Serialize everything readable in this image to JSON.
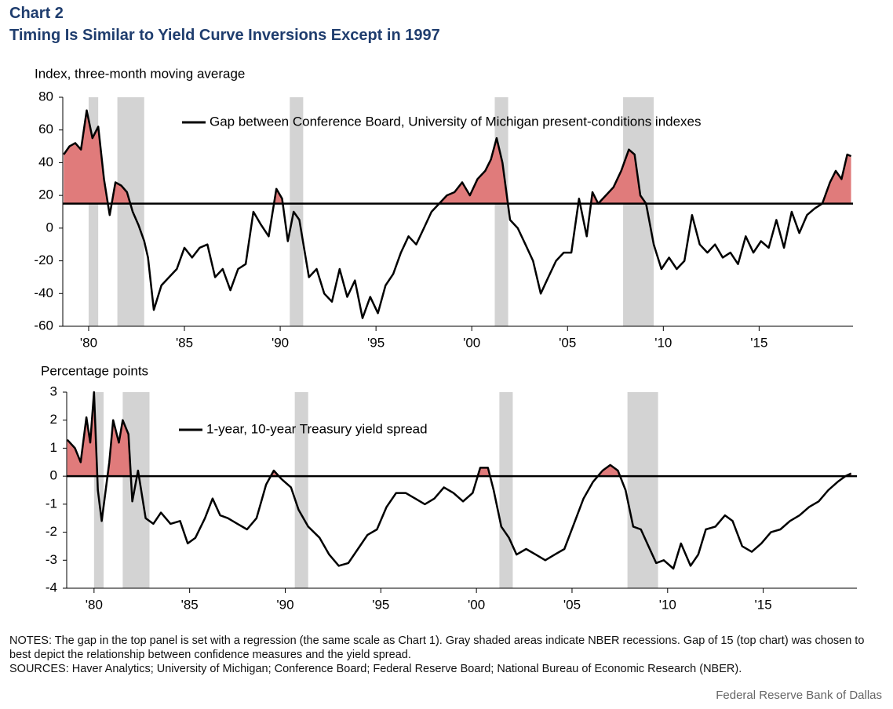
{
  "title": "Chart 2",
  "subtitle": "Timing Is Similar to Yield Curve Inversions Except in 1997",
  "notes": "NOTES: The gap in the top panel is set with a regression (the same scale as Chart 1). Gray shaded areas indicate NBER recessions. Gap of 15 (top chart) was chosen to best depict the relationship between confidence measures and the yield spread.",
  "sources": "SOURCES: Haver Analytics; University of Michigan; Conference Board; Federal Reserve Board; National Bureau of Economic Research (NBER).",
  "credit": "Federal Reserve Bank of Dallas",
  "chart_data": [
    {
      "type": "line",
      "y_label": "Index, three-month moving average",
      "xlim": [
        1978.65,
        2019.9
      ],
      "ylim": [
        -60,
        80
      ],
      "yticks": [
        -60,
        -40,
        -20,
        0,
        20,
        40,
        60,
        80
      ],
      "xticks": [
        {
          "value": 1980,
          "label": "'80"
        },
        {
          "value": 1985,
          "label": "'85"
        },
        {
          "value": 1990,
          "label": "'90"
        },
        {
          "value": 1995,
          "label": "'95"
        },
        {
          "value": 2000,
          "label": "'00"
        },
        {
          "value": 2005,
          "label": "'05"
        },
        {
          "value": 2010,
          "label": "'10"
        },
        {
          "value": 2015,
          "label": "'15"
        }
      ],
      "threshold": 15,
      "fill_color": "#e07b7b",
      "recession_color": "#d3d3d3",
      "recessions": [
        [
          1980.0,
          1980.5
        ],
        [
          1981.5,
          1982.9
        ],
        [
          1990.5,
          1991.2
        ],
        [
          2001.2,
          2001.9
        ],
        [
          2007.9,
          2009.5
        ]
      ],
      "x": [
        1978.7,
        1979.0,
        1979.3,
        1979.6,
        1979.9,
        1980.2,
        1980.5,
        1980.8,
        1981.1,
        1981.4,
        1981.7,
        1982.0,
        1982.3,
        1982.6,
        1982.9,
        1983.1,
        1983.4,
        1983.8,
        1984.2,
        1984.6,
        1985.0,
        1985.4,
        1985.8,
        1986.2,
        1986.6,
        1987.0,
        1987.4,
        1987.8,
        1988.2,
        1988.6,
        1989.0,
        1989.4,
        1989.8,
        1990.1,
        1990.4,
        1990.7,
        1991.0,
        1991.5,
        1991.9,
        1992.3,
        1992.7,
        1993.1,
        1993.5,
        1993.9,
        1994.3,
        1994.7,
        1995.1,
        1995.5,
        1995.9,
        1996.3,
        1996.7,
        1997.1,
        1997.5,
        1997.9,
        1998.3,
        1998.7,
        1999.1,
        1999.5,
        1999.9,
        2000.3,
        2000.7,
        2001.0,
        2001.3,
        2001.6,
        2002.0,
        2002.4,
        2002.8,
        2003.2,
        2003.6,
        2004.0,
        2004.4,
        2004.8,
        2005.2,
        2005.6,
        2006.0,
        2006.3,
        2006.6,
        2007.0,
        2007.4,
        2007.8,
        2008.2,
        2008.5,
        2008.8,
        2009.1,
        2009.5,
        2009.9,
        2010.3,
        2010.7,
        2011.1,
        2011.5,
        2011.9,
        2012.3,
        2012.7,
        2013.1,
        2013.5,
        2013.9,
        2014.3,
        2014.7,
        2015.1,
        2015.5,
        2015.9,
        2016.3,
        2016.7,
        2017.1,
        2017.5,
        2017.9,
        2018.3,
        2018.7,
        2019.0,
        2019.3,
        2019.6,
        2019.8
      ],
      "series": [
        {
          "name": "Gap between Conference Board, University of Michigan present-conditions indexes",
          "color": "#000000",
          "values": [
            45,
            50,
            52,
            48,
            72,
            55,
            62,
            30,
            8,
            28,
            26,
            22,
            10,
            2,
            -8,
            -18,
            -50,
            -35,
            -30,
            -25,
            -12,
            -18,
            -12,
            -10,
            -30,
            -25,
            -38,
            -25,
            -22,
            10,
            2,
            -5,
            24,
            18,
            -8,
            10,
            5,
            -30,
            -25,
            -40,
            -45,
            -25,
            -42,
            -32,
            -55,
            -42,
            -52,
            -35,
            -28,
            -15,
            -5,
            -10,
            0,
            10,
            15,
            20,
            22,
            28,
            20,
            30,
            35,
            42,
            55,
            40,
            5,
            0,
            -10,
            -20,
            -40,
            -30,
            -20,
            -15,
            -15,
            18,
            -5,
            22,
            15,
            20,
            25,
            35,
            48,
            45,
            20,
            15,
            -10,
            -25,
            -18,
            -25,
            -20,
            8,
            -10,
            -15,
            -10,
            -18,
            -15,
            -22,
            -5,
            -15,
            -8,
            -12,
            5,
            -12,
            10,
            -3,
            8,
            12,
            15,
            28,
            35,
            30,
            45,
            44
          ]
        }
      ]
    },
    {
      "type": "line",
      "y_label": "Percentage points",
      "xlim": [
        1978.57,
        2019.9
      ],
      "ylim": [
        -4,
        3
      ],
      "yticks": [
        -4,
        -3,
        -2,
        -1,
        0,
        1,
        2,
        3
      ],
      "xticks": [
        {
          "value": 1980,
          "label": "'80"
        },
        {
          "value": 1985,
          "label": "'85"
        },
        {
          "value": 1990,
          "label": "'90"
        },
        {
          "value": 1995,
          "label": "'95"
        },
        {
          "value": 2000,
          "label": "'00"
        },
        {
          "value": 2005,
          "label": "'05"
        },
        {
          "value": 2010,
          "label": "'10"
        },
        {
          "value": 2015,
          "label": "'15"
        }
      ],
      "threshold": 0,
      "fill_color": "#e07b7b",
      "recession_color": "#d3d3d3",
      "recessions": [
        [
          1980.0,
          1980.5
        ],
        [
          1981.5,
          1982.9
        ],
        [
          1990.5,
          1991.2
        ],
        [
          2001.2,
          2001.9
        ],
        [
          2007.9,
          2009.5
        ]
      ],
      "x": [
        1978.6,
        1979.0,
        1979.3,
        1979.6,
        1979.8,
        1980.0,
        1980.2,
        1980.4,
        1980.8,
        1981.0,
        1981.3,
        1981.5,
        1981.8,
        1982.0,
        1982.3,
        1982.7,
        1983.1,
        1983.5,
        1984.0,
        1984.5,
        1984.9,
        1985.3,
        1985.8,
        1986.2,
        1986.6,
        1987.0,
        1987.5,
        1988.0,
        1988.5,
        1989.0,
        1989.4,
        1989.8,
        1990.3,
        1990.7,
        1991.2,
        1991.8,
        1992.3,
        1992.8,
        1993.3,
        1993.8,
        1994.3,
        1994.8,
        1995.3,
        1995.8,
        1996.3,
        1996.8,
        1997.3,
        1997.8,
        1998.3,
        1998.8,
        1999.3,
        1999.8,
        2000.2,
        2000.6,
        2000.9,
        2001.3,
        2001.7,
        2002.1,
        2002.6,
        2003.1,
        2003.6,
        2004.1,
        2004.6,
        2005.1,
        2005.6,
        2006.1,
        2006.6,
        2007.0,
        2007.4,
        2007.8,
        2008.2,
        2008.6,
        2009.0,
        2009.4,
        2009.8,
        2010.3,
        2010.7,
        2011.2,
        2011.6,
        2012.0,
        2012.5,
        2013.0,
        2013.4,
        2013.9,
        2014.4,
        2014.9,
        2015.4,
        2015.9,
        2016.4,
        2016.9,
        2017.4,
        2017.9,
        2018.4,
        2018.9,
        2019.3,
        2019.6
      ],
      "series": [
        {
          "name": "1-year, 10-year Treasury yield spread",
          "color": "#000000",
          "values": [
            1.3,
            1.0,
            0.5,
            2.1,
            1.2,
            3.0,
            -0.5,
            -1.6,
            0.5,
            2.0,
            1.2,
            2.0,
            1.5,
            -0.9,
            0.2,
            -1.5,
            -1.7,
            -1.3,
            -1.7,
            -1.6,
            -2.4,
            -2.2,
            -1.5,
            -0.8,
            -1.4,
            -1.5,
            -1.7,
            -1.9,
            -1.5,
            -0.3,
            0.2,
            -0.1,
            -0.4,
            -1.2,
            -1.8,
            -2.2,
            -2.8,
            -3.2,
            -3.1,
            -2.6,
            -2.1,
            -1.9,
            -1.1,
            -0.6,
            -0.6,
            -0.8,
            -1.0,
            -0.8,
            -0.4,
            -0.6,
            -0.9,
            -0.6,
            0.3,
            0.3,
            -0.5,
            -1.8,
            -2.2,
            -2.8,
            -2.6,
            -2.8,
            -3.0,
            -2.8,
            -2.6,
            -1.7,
            -0.8,
            -0.2,
            0.2,
            0.4,
            0.2,
            -0.5,
            -1.8,
            -1.9,
            -2.5,
            -3.1,
            -3.0,
            -3.3,
            -2.4,
            -3.2,
            -2.8,
            -1.9,
            -1.8,
            -1.4,
            -1.6,
            -2.5,
            -2.7,
            -2.4,
            -2.0,
            -1.9,
            -1.6,
            -1.4,
            -1.1,
            -0.9,
            -0.5,
            -0.2,
            0.0,
            0.1
          ]
        }
      ]
    }
  ]
}
